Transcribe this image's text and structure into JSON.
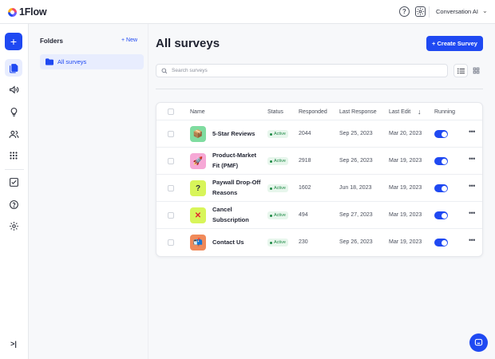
{
  "app": {
    "logo_text": "1Flow",
    "workspace": "Conversation AI"
  },
  "icons": {
    "help": "help-circle-icon",
    "settings": "gear-icon",
    "chevron": "chevron-down-icon"
  },
  "colors": {
    "accent": "#1f49f2",
    "active_badge_bg": "#e7f6ec",
    "active_badge_text": "#1f8a46"
  },
  "rail": {
    "add_label": "+",
    "items": [
      "surveys-icon",
      "announcements-icon",
      "insights-icon",
      "users-icon",
      "apps-icon",
      "tasks-icon",
      "help-icon",
      "settings-icon"
    ],
    "collapse_label": ">|"
  },
  "folders": {
    "title": "Folders",
    "new_label": "+ New",
    "items": [
      {
        "label": "All surveys"
      }
    ]
  },
  "main": {
    "title": "All surveys",
    "create_label": "+ Create Survey",
    "search_placeholder": "Search surveys"
  },
  "table": {
    "headers": {
      "name": "Name",
      "status": "Status",
      "responded": "Responded",
      "last_response": "Last Response",
      "last_edit": "Last Edit",
      "running": "Running"
    },
    "rows": [
      {
        "icon": "package-icon",
        "thumb_bg": "#7fdca0",
        "thumb_glyph": "📦",
        "name": "5-Star Reviews",
        "status": "Active",
        "responded": "2044",
        "last_response": "Sep 25, 2023",
        "last_edit": "Mar 20, 2023",
        "running": true
      },
      {
        "icon": "rocket-icon",
        "thumb_bg": "#f6a8d6",
        "thumb_glyph": "🚀",
        "name": "Product-Market Fit (PMF)",
        "status": "Active",
        "responded": "2918",
        "last_response": "Sep 26, 2023",
        "last_edit": "Mar 19, 2023",
        "running": true
      },
      {
        "icon": "question-icon",
        "thumb_bg": "#d8f55a",
        "thumb_glyph": "?",
        "name": "Paywall Drop-Off Reasons",
        "status": "Active",
        "responded": "1602",
        "last_response": "Jun 18, 2023",
        "last_edit": "Mar 19, 2023",
        "running": true
      },
      {
        "icon": "cross-icon",
        "thumb_bg": "#d8f55a",
        "thumb_glyph": "✕",
        "name": "Cancel Subscription",
        "status": "Active",
        "responded": "494",
        "last_response": "Sep 27, 2023",
        "last_edit": "Mar 19, 2023",
        "running": true
      },
      {
        "icon": "contact-icon",
        "thumb_bg": "#f08a5a",
        "thumb_glyph": "📬",
        "name": "Contact Us",
        "status": "Active",
        "responded": "230",
        "last_response": "Sep 26, 2023",
        "last_edit": "Mar 19, 2023",
        "running": true
      }
    ]
  }
}
